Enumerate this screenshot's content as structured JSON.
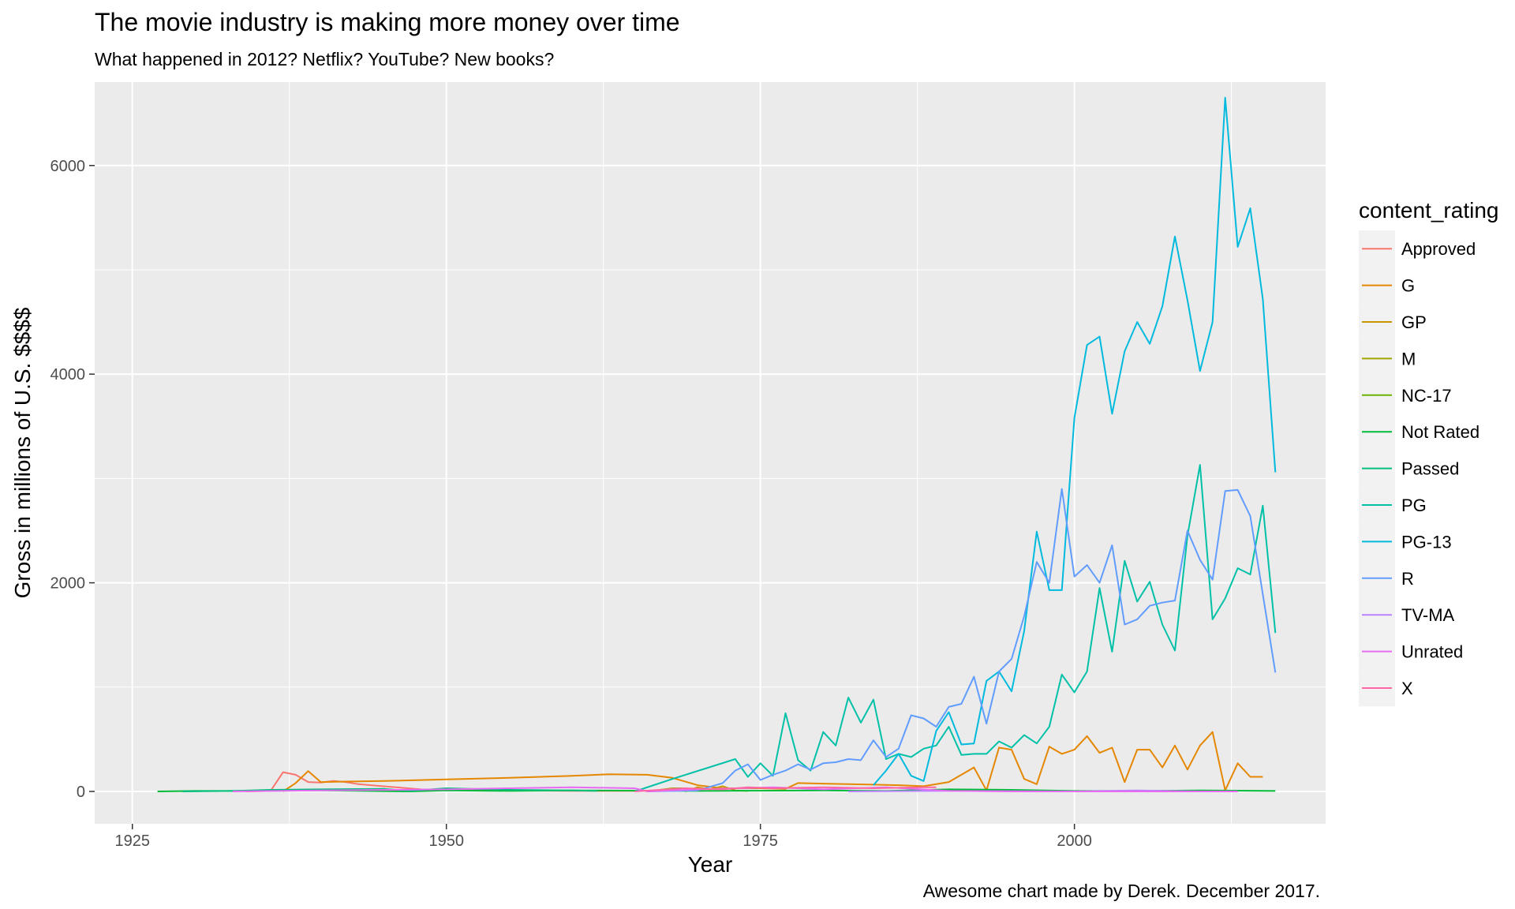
{
  "title": "The movie industry is making more money over time",
  "subtitle": "What happened in 2012? Netflix? YouTube? New books?",
  "caption": "Awesome chart made by Derek. December 2017.",
  "chart_data": {
    "type": "line",
    "xlabel": "Year",
    "ylabel": "Gross in millions of U.S. $$$$",
    "xlim": [
      1922,
      2020
    ],
    "ylim": [
      -310,
      6800
    ],
    "x_ticks": [
      1925,
      1950,
      1975,
      2000
    ],
    "y_ticks": [
      0,
      2000,
      4000,
      6000
    ],
    "grid": true,
    "legend_title": "content_rating",
    "legend_position": "right",
    "series": [
      {
        "name": "Approved",
        "color": "#F8766D",
        "points": [
          [
            1934,
            0
          ],
          [
            1936,
            5
          ],
          [
            1937,
            185
          ],
          [
            1938,
            160
          ],
          [
            1939,
            90
          ],
          [
            1940,
            85
          ],
          [
            1941,
            100
          ],
          [
            1942,
            90
          ],
          [
            1943,
            70
          ],
          [
            1944,
            60
          ],
          [
            1946,
            40
          ],
          [
            1948,
            20
          ],
          [
            1950,
            15
          ],
          [
            1954,
            10
          ],
          [
            1960,
            5
          ],
          [
            1965,
            5
          ]
        ]
      },
      {
        "name": "G",
        "color": "#E58700",
        "points": [
          [
            1937,
            0
          ],
          [
            1938,
            80
          ],
          [
            1939,
            195
          ],
          [
            1940,
            90
          ],
          [
            1942,
            95
          ],
          [
            1945,
            100
          ],
          [
            1950,
            115
          ],
          [
            1955,
            130
          ],
          [
            1960,
            150
          ],
          [
            1963,
            165
          ],
          [
            1966,
            160
          ],
          [
            1968,
            130
          ],
          [
            1970,
            60
          ],
          [
            1972,
            30
          ],
          [
            1975,
            30
          ],
          [
            1977,
            25
          ],
          [
            1978,
            80
          ],
          [
            1980,
            75
          ],
          [
            1982,
            70
          ],
          [
            1984,
            65
          ],
          [
            1986,
            60
          ],
          [
            1988,
            50
          ],
          [
            1990,
            90
          ],
          [
            1992,
            230
          ],
          [
            1993,
            10
          ],
          [
            1994,
            420
          ],
          [
            1995,
            400
          ],
          [
            1996,
            120
          ],
          [
            1997,
            70
          ],
          [
            1998,
            430
          ],
          [
            1999,
            360
          ],
          [
            2000,
            400
          ],
          [
            2001,
            530
          ],
          [
            2002,
            370
          ],
          [
            2003,
            420
          ],
          [
            2004,
            90
          ],
          [
            2005,
            400
          ],
          [
            2006,
            400
          ],
          [
            2007,
            230
          ],
          [
            2008,
            440
          ],
          [
            2009,
            210
          ],
          [
            2010,
            440
          ],
          [
            2011,
            570
          ],
          [
            2012,
            10
          ],
          [
            2013,
            270
          ],
          [
            2014,
            140
          ],
          [
            2015,
            140
          ]
        ]
      },
      {
        "name": "GP",
        "color": "#C99800",
        "points": [
          [
            1969,
            0
          ],
          [
            1970,
            40
          ],
          [
            1971,
            20
          ],
          [
            1972,
            50
          ],
          [
            1973,
            10
          ],
          [
            1974,
            5
          ]
        ]
      },
      {
        "name": "M",
        "color": "#A3A500",
        "points": [
          [
            1966,
            0
          ],
          [
            1968,
            30
          ],
          [
            1969,
            30
          ],
          [
            1970,
            10
          ]
        ]
      },
      {
        "name": "NC-17",
        "color": "#6BB100",
        "points": [
          [
            1990,
            15
          ],
          [
            1992,
            5
          ],
          [
            1995,
            10
          ],
          [
            1996,
            0
          ],
          [
            1998,
            5
          ],
          [
            2004,
            0
          ],
          [
            2012,
            5
          ]
        ]
      },
      {
        "name": "Not Rated",
        "color": "#00BA38",
        "points": [
          [
            1927,
            0
          ],
          [
            1930,
            5
          ],
          [
            1935,
            5
          ],
          [
            1940,
            10
          ],
          [
            1947,
            0
          ],
          [
            1950,
            10
          ],
          [
            1955,
            5
          ],
          [
            1960,
            10
          ],
          [
            1970,
            5
          ],
          [
            1980,
            10
          ],
          [
            1985,
            5
          ],
          [
            1990,
            20
          ],
          [
            1995,
            15
          ],
          [
            2000,
            5
          ],
          [
            2005,
            5
          ],
          [
            2010,
            10
          ],
          [
            2016,
            5
          ]
        ]
      },
      {
        "name": "Passed",
        "color": "#00BF7D",
        "points": [
          [
            1929,
            0
          ],
          [
            1933,
            5
          ],
          [
            1936,
            15
          ],
          [
            1940,
            20
          ],
          [
            1945,
            25
          ],
          [
            1947,
            5
          ],
          [
            1950,
            30
          ],
          [
            1955,
            15
          ],
          [
            1960,
            10
          ],
          [
            1962,
            5
          ]
        ]
      },
      {
        "name": "PG",
        "color": "#00C1A7",
        "points": [
          [
            1965,
            0
          ],
          [
            1968,
            120
          ],
          [
            1973,
            310
          ],
          [
            1974,
            140
          ],
          [
            1975,
            270
          ],
          [
            1976,
            150
          ],
          [
            1977,
            750
          ],
          [
            1978,
            300
          ],
          [
            1979,
            200
          ],
          [
            1980,
            570
          ],
          [
            1981,
            440
          ],
          [
            1982,
            900
          ],
          [
            1983,
            660
          ],
          [
            1984,
            880
          ],
          [
            1985,
            310
          ],
          [
            1986,
            360
          ],
          [
            1987,
            330
          ],
          [
            1988,
            410
          ],
          [
            1989,
            440
          ],
          [
            1990,
            620
          ],
          [
            1991,
            350
          ],
          [
            1992,
            360
          ],
          [
            1993,
            360
          ],
          [
            1994,
            480
          ],
          [
            1995,
            420
          ],
          [
            1996,
            540
          ],
          [
            1997,
            460
          ],
          [
            1998,
            620
          ],
          [
            1999,
            1120
          ],
          [
            2000,
            950
          ],
          [
            2001,
            1150
          ],
          [
            2002,
            1950
          ],
          [
            2003,
            1340
          ],
          [
            2004,
            2210
          ],
          [
            2005,
            1820
          ],
          [
            2006,
            2010
          ],
          [
            2007,
            1600
          ],
          [
            2008,
            1350
          ],
          [
            2009,
            2450
          ],
          [
            2010,
            3130
          ],
          [
            2011,
            1650
          ],
          [
            2012,
            1850
          ],
          [
            2013,
            2140
          ],
          [
            2014,
            2080
          ],
          [
            2015,
            2740
          ],
          [
            2016,
            1520
          ]
        ]
      },
      {
        "name": "PG-13",
        "color": "#00BADE",
        "points": [
          [
            1984,
            60
          ],
          [
            1985,
            200
          ],
          [
            1986,
            360
          ],
          [
            1987,
            150
          ],
          [
            1988,
            100
          ],
          [
            1989,
            580
          ],
          [
            1990,
            760
          ],
          [
            1991,
            450
          ],
          [
            1992,
            460
          ],
          [
            1993,
            1060
          ],
          [
            1994,
            1150
          ],
          [
            1995,
            960
          ],
          [
            1996,
            1540
          ],
          [
            1997,
            2490
          ],
          [
            1998,
            1930
          ],
          [
            1999,
            1930
          ],
          [
            2000,
            3580
          ],
          [
            2001,
            4280
          ],
          [
            2002,
            4360
          ],
          [
            2003,
            3620
          ],
          [
            2004,
            4220
          ],
          [
            2005,
            4500
          ],
          [
            2006,
            4290
          ],
          [
            2007,
            4650
          ],
          [
            2008,
            5320
          ],
          [
            2009,
            4710
          ],
          [
            2010,
            4030
          ],
          [
            2011,
            4500
          ],
          [
            2012,
            6650
          ],
          [
            2013,
            5220
          ],
          [
            2014,
            5590
          ],
          [
            2015,
            4720
          ],
          [
            2016,
            3060
          ]
        ]
      },
      {
        "name": "R",
        "color": "#619CFF",
        "points": [
          [
            1966,
            0
          ],
          [
            1970,
            10
          ],
          [
            1972,
            80
          ],
          [
            1973,
            200
          ],
          [
            1974,
            260
          ],
          [
            1975,
            110
          ],
          [
            1976,
            160
          ],
          [
            1977,
            200
          ],
          [
            1978,
            260
          ],
          [
            1979,
            210
          ],
          [
            1980,
            270
          ],
          [
            1981,
            280
          ],
          [
            1982,
            310
          ],
          [
            1983,
            300
          ],
          [
            1984,
            490
          ],
          [
            1985,
            330
          ],
          [
            1986,
            410
          ],
          [
            1987,
            730
          ],
          [
            1988,
            700
          ],
          [
            1989,
            620
          ],
          [
            1990,
            810
          ],
          [
            1991,
            840
          ],
          [
            1992,
            1100
          ],
          [
            1993,
            650
          ],
          [
            1994,
            1150
          ],
          [
            1995,
            1270
          ],
          [
            1996,
            1680
          ],
          [
            1997,
            2200
          ],
          [
            1998,
            2000
          ],
          [
            1999,
            2900
          ],
          [
            2000,
            2060
          ],
          [
            2001,
            2170
          ],
          [
            2002,
            2000
          ],
          [
            2003,
            2360
          ],
          [
            2004,
            1600
          ],
          [
            2005,
            1650
          ],
          [
            2006,
            1780
          ],
          [
            2007,
            1810
          ],
          [
            2008,
            1830
          ],
          [
            2009,
            2500
          ],
          [
            2010,
            2220
          ],
          [
            2011,
            2030
          ],
          [
            2012,
            2880
          ],
          [
            2013,
            2890
          ],
          [
            2014,
            2640
          ],
          [
            2016,
            1140
          ]
        ]
      },
      {
        "name": "TV-MA",
        "color": "#B983FF",
        "points": [
          [
            1982,
            0
          ],
          [
            1990,
            5
          ],
          [
            2000,
            0
          ],
          [
            2005,
            10
          ],
          [
            2010,
            0
          ]
        ]
      },
      {
        "name": "Unrated",
        "color": "#E76BF3",
        "points": [
          [
            1933,
            0
          ],
          [
            1940,
            10
          ],
          [
            1950,
            20
          ],
          [
            1955,
            30
          ],
          [
            1960,
            40
          ],
          [
            1965,
            30
          ],
          [
            1966,
            0
          ],
          [
            1970,
            20
          ],
          [
            1976,
            40
          ],
          [
            1980,
            20
          ],
          [
            1985,
            40
          ],
          [
            1990,
            5
          ],
          [
            1995,
            0
          ],
          [
            2000,
            0
          ],
          [
            2005,
            0
          ],
          [
            2010,
            0
          ],
          [
            2013,
            0
          ]
        ]
      },
      {
        "name": "X",
        "color": "#FF67A4",
        "points": [
          [
            1965,
            0
          ],
          [
            1969,
            30
          ],
          [
            1972,
            20
          ],
          [
            1974,
            40
          ],
          [
            1976,
            30
          ],
          [
            1980,
            40
          ],
          [
            1984,
            30
          ],
          [
            1988,
            40
          ],
          [
            1989,
            40
          ]
        ]
      }
    ]
  }
}
